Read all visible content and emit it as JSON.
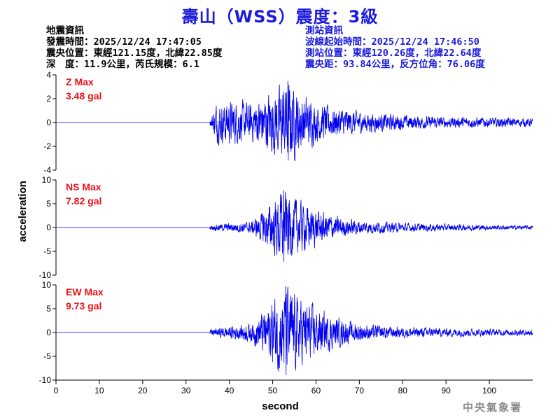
{
  "header": {
    "title": "壽山（WSS）震度：3級"
  },
  "earthquake_info": {
    "heading": "地震資訊",
    "time": "發震時間：2025/12/24 17:47:05",
    "location": "震央位置：東經121.15度，北緯22.85度",
    "depth_magnitude": "深　度：11.9公里，芮氏規模：6.1"
  },
  "station_info": {
    "heading": "測站資訊",
    "wave_start": "波線起始時間：2025/12/24 17:46:50",
    "location": "測站位置：東經120.26度，北緯22.64度",
    "distance": "震央距：93.84公里，反方位角：76.06度"
  },
  "footer": {
    "agency": "中央氣象署"
  },
  "colors": {
    "title": "#1a1adc",
    "trace": "#0000ee",
    "label": "#e8121a",
    "axis": "#000000"
  },
  "chart_data": {
    "type": "line",
    "xlabel": "second",
    "ylabel": "acceleration",
    "xlim": [
      0,
      110
    ],
    "xticks": [
      0,
      10,
      20,
      30,
      40,
      50,
      60,
      70,
      80,
      90,
      100
    ],
    "panels": [
      {
        "name": "Z",
        "label": "Z Max",
        "max_text": "3.48 gal",
        "max_value": 3.48,
        "ylim": [
          -4,
          4
        ],
        "yticks": [
          -4,
          -2,
          0,
          2,
          4
        ],
        "onset_s": 35.5,
        "peak_time_s": 53.5,
        "noise_floor": 0.6,
        "envelope": [
          [
            34,
            0.02
          ],
          [
            35.5,
            0.2
          ],
          [
            37,
            1.6
          ],
          [
            40,
            1.8
          ],
          [
            45,
            1.6
          ],
          [
            50,
            2.6
          ],
          [
            53.5,
            3.48
          ],
          [
            56,
            2.5
          ],
          [
            60,
            1.6
          ],
          [
            65,
            1.2
          ],
          [
            70,
            0.9
          ],
          [
            80,
            0.6
          ],
          [
            90,
            0.45
          ],
          [
            100,
            0.4
          ],
          [
            110,
            0.35
          ]
        ]
      },
      {
        "name": "NS",
        "label": "NS Max",
        "max_text": "7.82 gal",
        "max_value": 7.82,
        "ylim": [
          -10,
          10
        ],
        "yticks": [
          -10,
          -5,
          0,
          5,
          10
        ],
        "onset_s": 35.5,
        "peak_time_s": 52.5,
        "noise_floor": 0.3,
        "envelope": [
          [
            34,
            0.05
          ],
          [
            36,
            0.6
          ],
          [
            40,
            0.9
          ],
          [
            45,
            1.2
          ],
          [
            48,
            3.5
          ],
          [
            52.5,
            7.82
          ],
          [
            55,
            6.0
          ],
          [
            58,
            4.5
          ],
          [
            62,
            3.0
          ],
          [
            66,
            2.0
          ],
          [
            70,
            1.4
          ],
          [
            80,
            0.9
          ],
          [
            90,
            0.7
          ],
          [
            100,
            0.5
          ],
          [
            110,
            0.4
          ]
        ]
      },
      {
        "name": "EW",
        "label": "EW Max",
        "max_text": "9.73 gal",
        "max_value": 9.73,
        "ylim": [
          -10,
          10
        ],
        "yticks": [
          -10,
          -5,
          0,
          5,
          10
        ],
        "onset_s": 35.5,
        "peak_time_s": 53.0,
        "noise_floor": 0.3,
        "envelope": [
          [
            34,
            0.05
          ],
          [
            36,
            0.8
          ],
          [
            40,
            1.3
          ],
          [
            45,
            2.0
          ],
          [
            48,
            4.5
          ],
          [
            53,
            9.73
          ],
          [
            56,
            7.0
          ],
          [
            60,
            5.0
          ],
          [
            64,
            3.3
          ],
          [
            68,
            2.2
          ],
          [
            72,
            1.6
          ],
          [
            80,
            1.1
          ],
          [
            90,
            0.9
          ],
          [
            100,
            0.7
          ],
          [
            110,
            0.6
          ]
        ]
      }
    ]
  }
}
